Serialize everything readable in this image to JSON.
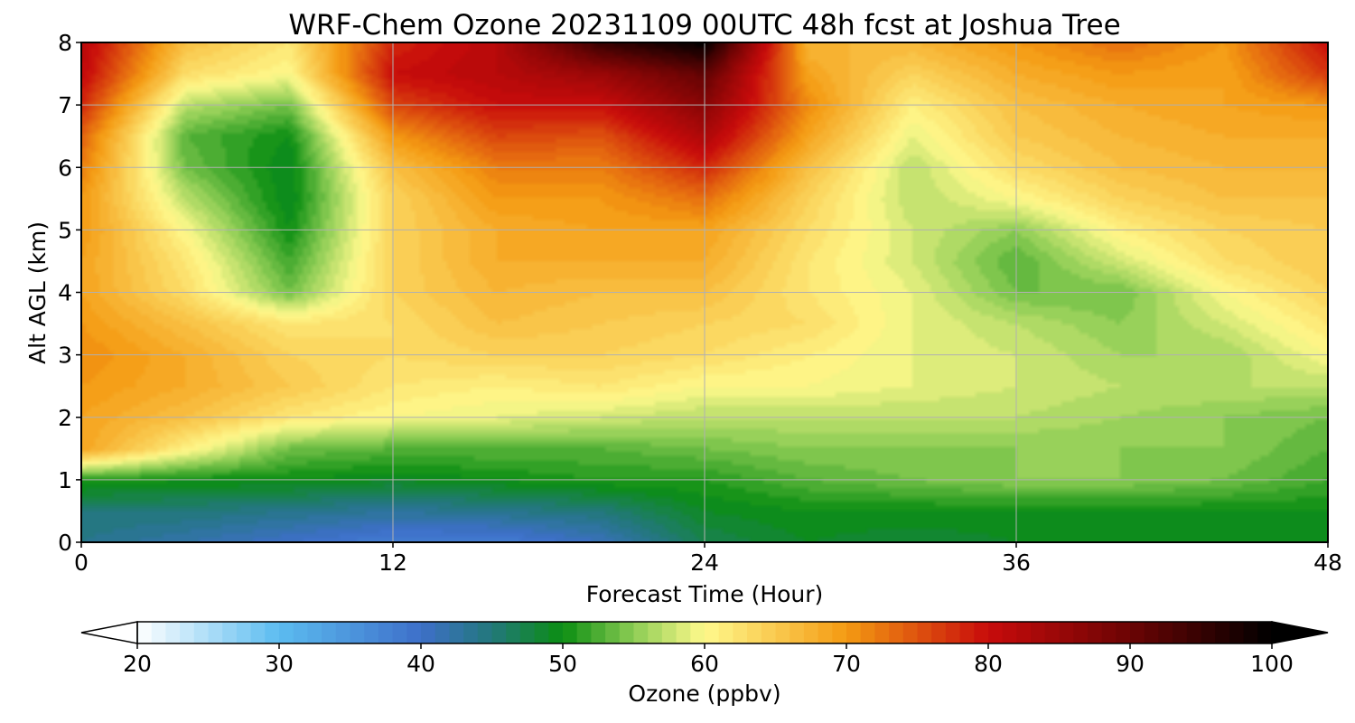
{
  "chart_data": {
    "type": "heatmap",
    "title": "WRF-Chem Ozone  20231109 00UTC 48h fcst at Joshua Tree",
    "xlabel": "Forecast Time (Hour)",
    "ylabel": "Alt AGL (km)",
    "xlim": [
      0,
      48
    ],
    "ylim": [
      0,
      8
    ],
    "x_ticks": [
      "0",
      "12",
      "24",
      "36",
      "48"
    ],
    "y_ticks": [
      "0",
      "1",
      "2",
      "3",
      "4",
      "5",
      "6",
      "7",
      "8"
    ],
    "grid": true,
    "x": [
      0,
      4,
      8,
      12,
      16,
      20,
      24,
      28,
      32,
      36,
      40,
      44,
      48
    ],
    "y": [
      0,
      0.5,
      1,
      1.5,
      2,
      2.5,
      3,
      3.5,
      4,
      4.5,
      5,
      5.5,
      6,
      6.5,
      7,
      7.5,
      8
    ],
    "z": [
      [
        44,
        42,
        40,
        38,
        38,
        41,
        47,
        49,
        48,
        49,
        49,
        49,
        49
      ],
      [
        45,
        45,
        44,
        43,
        44,
        45,
        49,
        50,
        50,
        50,
        50,
        50,
        50
      ],
      [
        51,
        50,
        50,
        49,
        50,
        51,
        51,
        53,
        54,
        55,
        55,
        54,
        52
      ],
      [
        69,
        61,
        54,
        53,
        53,
        53,
        54,
        55,
        55,
        55,
        55,
        55,
        53
      ],
      [
        69,
        66,
        62,
        60,
        59,
        58,
        57,
        57,
        57,
        57,
        56,
        55,
        54
      ],
      [
        70,
        68,
        65,
        62,
        61,
        62,
        60,
        60,
        59,
        58,
        57,
        57,
        57
      ],
      [
        71,
        68,
        64,
        63,
        64,
        64,
        63,
        61,
        59,
        58,
        56,
        56,
        60
      ],
      [
        70,
        66,
        62,
        63,
        66,
        65,
        64,
        63,
        59,
        57,
        55,
        58,
        62
      ],
      [
        69,
        63,
        54,
        64,
        67,
        66,
        66,
        62,
        59,
        54,
        54,
        60,
        64
      ],
      [
        69,
        62,
        52,
        64,
        68,
        68,
        68,
        62,
        58,
        53,
        58,
        63,
        65
      ],
      [
        70,
        60,
        50,
        64,
        68,
        69,
        69,
        63,
        58,
        55,
        61,
        64,
        65
      ],
      [
        70,
        57,
        49,
        64,
        70,
        70,
        73,
        64,
        57,
        60,
        64,
        66,
        66
      ],
      [
        72,
        54,
        49,
        66,
        72,
        72,
        78,
        66,
        57,
        63,
        66,
        67,
        67
      ],
      [
        74,
        53,
        50,
        70,
        76,
        75,
        83,
        69,
        59,
        65,
        67,
        68,
        68
      ],
      [
        78,
        57,
        54,
        76,
        80,
        80,
        87,
        71,
        61,
        66,
        68,
        69,
        70
      ],
      [
        81,
        63,
        60,
        80,
        82,
        85,
        91,
        69,
        64,
        68,
        70,
        69,
        77
      ],
      [
        82,
        66,
        62,
        78,
        82,
        95,
        100,
        67,
        67,
        70,
        73,
        70,
        80
      ]
    ],
    "colorbar": {
      "label": "Ozone  (ppbv)",
      "min": 20,
      "max": 100,
      "ticks": [
        "20",
        "30",
        "40",
        "50",
        "60",
        "70",
        "80",
        "90",
        "100"
      ],
      "extend": "both",
      "stops": [
        [
          20,
          "#ffffff"
        ],
        [
          30,
          "#5bbcf0"
        ],
        [
          40,
          "#3e6fc9"
        ],
        [
          45,
          "#22787a"
        ],
        [
          50,
          "#0b8e12"
        ],
        [
          55,
          "#8ccc54"
        ],
        [
          60,
          "#fff98c"
        ],
        [
          70,
          "#f49a12"
        ],
        [
          80,
          "#c80b0b"
        ],
        [
          90,
          "#6b0404"
        ],
        [
          100,
          "#000000"
        ]
      ]
    }
  }
}
